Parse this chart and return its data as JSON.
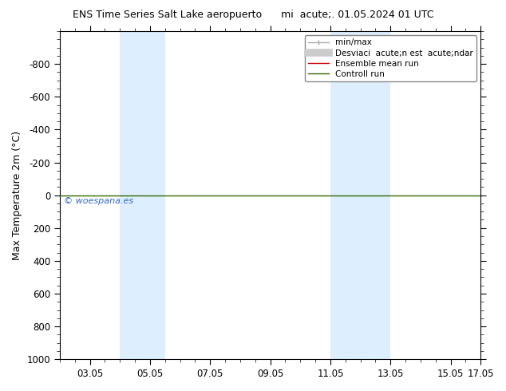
{
  "title": "ENS Time Series Salt Lake aeropuerto      mi  acute;. 01.05.2024 01 UTC",
  "ylabel": "Max Temperature 2m (°C)",
  "xlim_min": 0,
  "xlim_max": 14,
  "ylim_bottom": 1000,
  "ylim_top": -1000,
  "xtick_positions": [
    1,
    3,
    5,
    7,
    9,
    11,
    13,
    14
  ],
  "xtick_labels": [
    "03.05",
    "05.05",
    "07.05",
    "09.05",
    "11.05",
    "13.05",
    "15.05",
    "17.05"
  ],
  "ytick_positions": [
    -800,
    -600,
    -400,
    -200,
    0,
    200,
    400,
    600,
    800,
    1000
  ],
  "ytick_labels": [
    "-800",
    "-600",
    "-400",
    "-200",
    "0",
    "200",
    "400",
    "600",
    "800",
    "1000"
  ],
  "shaded_bands": [
    {
      "xmin": 2.0,
      "xmax": 3.5
    },
    {
      "xmin": 9.0,
      "xmax": 11.0
    }
  ],
  "band_color": "#ddeeff",
  "control_run_y": 0.0,
  "control_run_color": "#336600",
  "ensemble_mean_color": "#cc0000",
  "watermark": "© woespana.es",
  "watermark_color": "#3366cc",
  "legend_labels": [
    "min/max",
    "Desviaci  acute;n est  acute;ndar",
    "Ensemble mean run",
    "Controll run"
  ],
  "legend_colors": [
    "#aaaaaa",
    "#cccccc",
    "#cc0000",
    "#336600"
  ],
  "background_color": "#ffffff",
  "figure_width": 6.34,
  "figure_height": 4.9,
  "dpi": 100
}
